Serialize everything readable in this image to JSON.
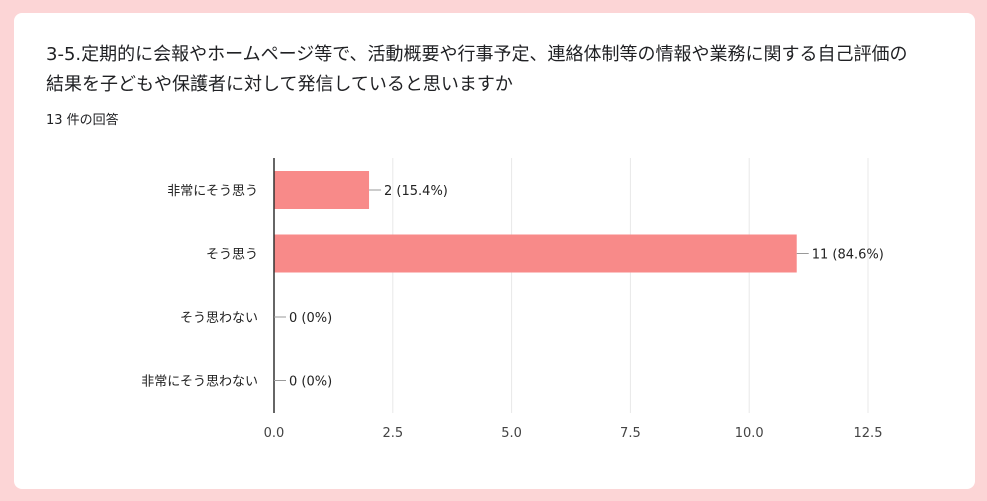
{
  "question": {
    "title": "3-5.定期的に会報やホームページ等で、活動概要や行事予定、連絡体制等の情報や業務に関する自己評価の結果を子どもや保護者に対して発信していると思いますか",
    "response_count": "13 件の回答"
  },
  "colors": {
    "bar": "#f88a89",
    "background": "#fcd5d6"
  },
  "chart_data": {
    "type": "bar",
    "orientation": "horizontal",
    "categories": [
      "非常にそう思う",
      "そう思う",
      "そう思わない",
      "非常にそう思わない"
    ],
    "values": [
      2,
      11,
      0,
      0
    ],
    "data_labels": [
      "2 (15.4%)",
      "11 (84.6%)",
      "0 (0%)",
      "0 (0%)"
    ],
    "xlim": [
      0,
      12.5
    ],
    "xticks": [
      0,
      2.5,
      5,
      7.5,
      10,
      12.5
    ],
    "xtick_labels": [
      "0.0",
      "2.5",
      "5.0",
      "7.5",
      "10.0",
      "12.5"
    ],
    "grid": true
  }
}
